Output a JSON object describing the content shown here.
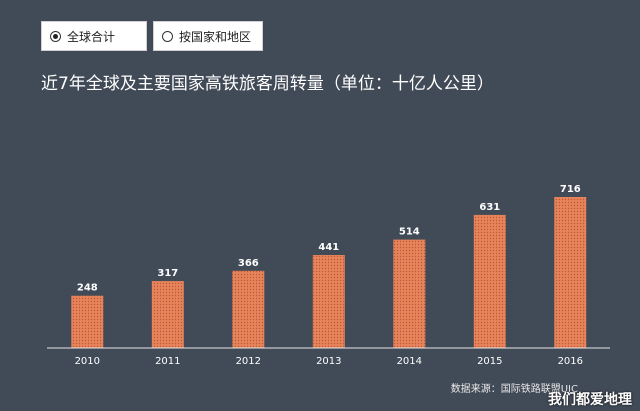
{
  "controls": {
    "options": [
      {
        "label": "全球合计",
        "selected": true
      },
      {
        "label": "按国家和地区",
        "selected": false
      }
    ]
  },
  "chart_data": {
    "type": "bar",
    "title": "近7年全球及主要国家高铁旅客周转量（单位：十亿人公里）",
    "categories": [
      "2010",
      "2011",
      "2012",
      "2013",
      "2014",
      "2015",
      "2016"
    ],
    "values": [
      248,
      317,
      366,
      441,
      514,
      631,
      716
    ],
    "ylim": [
      0,
      760
    ],
    "grid": false,
    "bar_color": "#e8845c"
  },
  "footer": {
    "source": "数据来源：国际铁路联盟UIC",
    "watermark": "我们都爱地理"
  }
}
